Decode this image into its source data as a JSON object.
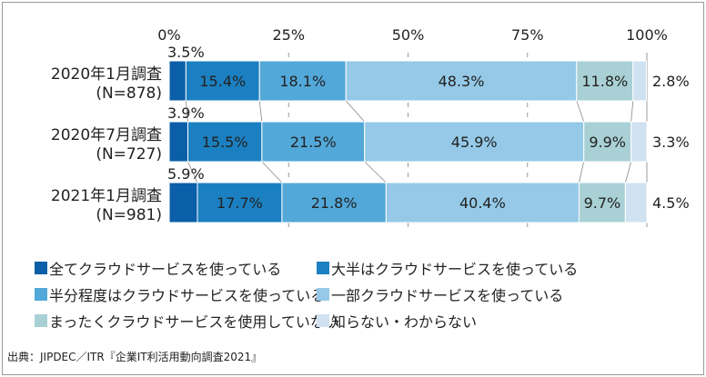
{
  "chart_data": {
    "type": "bar",
    "stacked": true,
    "orientation": "horizontal",
    "xlim": [
      0,
      100
    ],
    "xticks": [
      "0%",
      "25%",
      "50%",
      "75%",
      "100%"
    ],
    "categories": [
      [
        "2020年1月調査",
        "(N=878)"
      ],
      [
        "2020年7月調査",
        "(N=727)"
      ],
      [
        "2021年1月調査",
        "(N=981)"
      ]
    ],
    "series": [
      {
        "name": "全てクラウドサービスを使っている",
        "color": "#0b5ea8",
        "values": [
          3.5,
          3.9,
          5.9
        ]
      },
      {
        "name": "大半はクラウドサービスを使っている",
        "color": "#1b80c1",
        "values": [
          15.4,
          15.5,
          17.7
        ]
      },
      {
        "name": "半分程度はクラウドサービスを使っている",
        "color": "#52a8d9",
        "values": [
          18.1,
          21.5,
          21.8
        ]
      },
      {
        "name": "一部クラウドサービスを使っている",
        "color": "#95c9e7",
        "values": [
          48.3,
          45.9,
          40.4
        ]
      },
      {
        "name": "まったくクラウドサービスを使用していない",
        "color": "#a9d1d5",
        "values": [
          11.8,
          9.9,
          9.7
        ]
      },
      {
        "name": "知らない・わからない",
        "color": "#d0e1f1",
        "values": [
          2.8,
          3.3,
          4.5
        ]
      }
    ]
  },
  "source": "出典：JIPDEC／ITR『企業IT利活用動向調査2021』"
}
